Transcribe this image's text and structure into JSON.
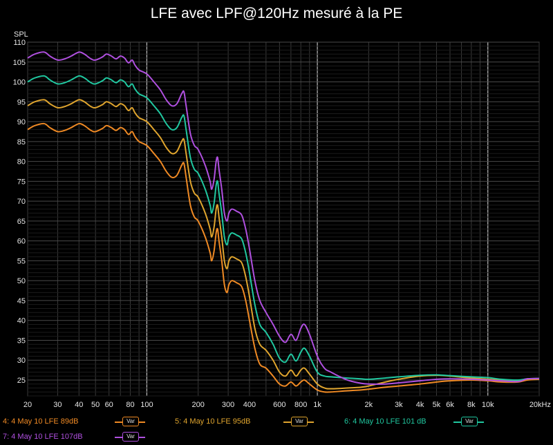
{
  "chart_data": {
    "type": "line",
    "title": "LFE avec LPF@120Hz mesuré à la PE",
    "ylabel": "SPL",
    "xlabel": "",
    "x_scale": "log",
    "xlim": [
      20,
      20000
    ],
    "ylim": [
      21,
      110
    ],
    "grid": true,
    "x_tick_labels": [
      "20",
      "30",
      "40",
      "50",
      "60",
      "80",
      "100",
      "200",
      "300",
      "400",
      "600",
      "800",
      "1k",
      "2k",
      "3k",
      "4k",
      "5k",
      "6k",
      "8k",
      "10k",
      "20kHz"
    ],
    "x_tick_values": [
      20,
      30,
      40,
      50,
      60,
      80,
      100,
      200,
      300,
      400,
      600,
      800,
      1000,
      2000,
      3000,
      4000,
      5000,
      6000,
      8000,
      10000,
      20000
    ],
    "y_ticks": [
      25,
      30,
      35,
      40,
      45,
      50,
      55,
      60,
      65,
      70,
      75,
      80,
      85,
      90,
      95,
      100,
      105,
      110
    ],
    "legend_placement": "bottom",
    "series": [
      {
        "name": "4: 4 May 10 LFE 89dB",
        "color": "#f08a24",
        "legend_button": "Var",
        "points": [
          [
            20,
            88
          ],
          [
            22,
            89
          ],
          [
            25,
            89.5
          ],
          [
            27,
            88.5
          ],
          [
            30,
            87.5
          ],
          [
            33,
            87.8
          ],
          [
            36,
            88.5
          ],
          [
            40,
            89.5
          ],
          [
            43,
            89
          ],
          [
            47,
            87.8
          ],
          [
            50,
            87.5
          ],
          [
            55,
            88.3
          ],
          [
            58,
            89
          ],
          [
            62,
            88.5
          ],
          [
            66,
            87.8
          ],
          [
            70,
            88.5
          ],
          [
            74,
            88
          ],
          [
            78,
            86.8
          ],
          [
            82,
            87.5
          ],
          [
            85,
            86.3
          ],
          [
            90,
            85
          ],
          [
            100,
            84
          ],
          [
            110,
            82
          ],
          [
            120,
            80
          ],
          [
            130,
            77.5
          ],
          [
            140,
            76
          ],
          [
            150,
            76.5
          ],
          [
            160,
            79
          ],
          [
            165,
            79.5
          ],
          [
            170,
            76
          ],
          [
            180,
            69
          ],
          [
            190,
            66
          ],
          [
            200,
            65
          ],
          [
            220,
            61
          ],
          [
            235,
            57
          ],
          [
            240,
            55
          ],
          [
            248,
            57.5
          ],
          [
            255,
            62
          ],
          [
            260,
            63
          ],
          [
            265,
            60
          ],
          [
            275,
            55
          ],
          [
            285,
            49
          ],
          [
            295,
            47
          ],
          [
            303,
            49
          ],
          [
            315,
            50
          ],
          [
            335,
            49.5
          ],
          [
            360,
            48.5
          ],
          [
            380,
            45
          ],
          [
            400,
            40
          ],
          [
            430,
            33
          ],
          [
            460,
            29
          ],
          [
            500,
            28
          ],
          [
            550,
            26
          ],
          [
            600,
            24
          ],
          [
            650,
            23.5
          ],
          [
            700,
            24.5
          ],
          [
            750,
            23.5
          ],
          [
            800,
            24.5
          ],
          [
            840,
            25
          ],
          [
            900,
            24
          ],
          [
            1000,
            22.5
          ],
          [
            1100,
            22
          ],
          [
            1200,
            22
          ],
          [
            1500,
            22.3
          ],
          [
            1800,
            22.5
          ],
          [
            2000,
            22.7
          ],
          [
            2500,
            23.2
          ],
          [
            3000,
            23.5
          ],
          [
            4000,
            24
          ],
          [
            5000,
            24.5
          ],
          [
            6000,
            24.8
          ],
          [
            8000,
            25
          ],
          [
            10000,
            24.8
          ],
          [
            12000,
            24.5
          ],
          [
            15000,
            24.5
          ],
          [
            17000,
            25
          ],
          [
            20000,
            25.2
          ]
        ]
      },
      {
        "name": "5: 4 May 10 LFE 95dB",
        "color": "#e0a52e",
        "legend_button": "Var",
        "points": [
          [
            20,
            94
          ],
          [
            22,
            95
          ],
          [
            25,
            95.5
          ],
          [
            27,
            94.5
          ],
          [
            30,
            93.5
          ],
          [
            33,
            93.8
          ],
          [
            36,
            94.5
          ],
          [
            40,
            95.5
          ],
          [
            43,
            95
          ],
          [
            47,
            93.8
          ],
          [
            50,
            93.5
          ],
          [
            55,
            94.3
          ],
          [
            58,
            95
          ],
          [
            62,
            94.5
          ],
          [
            66,
            93.8
          ],
          [
            70,
            94.5
          ],
          [
            74,
            94
          ],
          [
            78,
            92.8
          ],
          [
            82,
            93.5
          ],
          [
            85,
            92.3
          ],
          [
            90,
            91
          ],
          [
            100,
            90
          ],
          [
            110,
            88
          ],
          [
            120,
            86
          ],
          [
            130,
            83.5
          ],
          [
            140,
            82
          ],
          [
            150,
            82.5
          ],
          [
            160,
            85
          ],
          [
            165,
            85.5
          ],
          [
            170,
            82
          ],
          [
            180,
            75
          ],
          [
            190,
            72
          ],
          [
            200,
            71
          ],
          [
            220,
            67
          ],
          [
            235,
            63
          ],
          [
            240,
            61
          ],
          [
            248,
            63.5
          ],
          [
            255,
            68
          ],
          [
            260,
            69
          ],
          [
            265,
            66
          ],
          [
            275,
            61
          ],
          [
            285,
            55
          ],
          [
            295,
            53
          ],
          [
            303,
            55
          ],
          [
            315,
            56
          ],
          [
            335,
            55.5
          ],
          [
            360,
            54.5
          ],
          [
            380,
            51
          ],
          [
            400,
            46
          ],
          [
            430,
            38
          ],
          [
            460,
            34
          ],
          [
            500,
            32.5
          ],
          [
            550,
            30
          ],
          [
            600,
            27
          ],
          [
            650,
            26
          ],
          [
            700,
            27.5
          ],
          [
            750,
            26
          ],
          [
            800,
            27.5
          ],
          [
            840,
            28
          ],
          [
            900,
            26.5
          ],
          [
            1000,
            24
          ],
          [
            1100,
            23
          ],
          [
            1200,
            22.8
          ],
          [
            1500,
            23
          ],
          [
            1800,
            23.2
          ],
          [
            2000,
            23.5
          ],
          [
            2500,
            24.5
          ],
          [
            3000,
            25.2
          ],
          [
            4000,
            26
          ],
          [
            5000,
            26.2
          ],
          [
            6000,
            26
          ],
          [
            8000,
            25.5
          ],
          [
            10000,
            25.2
          ],
          [
            12000,
            25
          ],
          [
            15000,
            24.8
          ],
          [
            17000,
            25.3
          ],
          [
            20000,
            25.4
          ]
        ]
      },
      {
        "name": "6: 4 May 10 LFE 101 dB",
        "color": "#20c8a0",
        "legend_button": "Var",
        "points": [
          [
            20,
            100
          ],
          [
            22,
            101
          ],
          [
            25,
            101.5
          ],
          [
            27,
            100.5
          ],
          [
            30,
            99.5
          ],
          [
            33,
            99.8
          ],
          [
            36,
            100.5
          ],
          [
            40,
            101.5
          ],
          [
            43,
            101
          ],
          [
            47,
            99.8
          ],
          [
            50,
            99.5
          ],
          [
            55,
            100.3
          ],
          [
            58,
            101
          ],
          [
            62,
            100.5
          ],
          [
            66,
            99.8
          ],
          [
            70,
            100.5
          ],
          [
            74,
            100
          ],
          [
            78,
            98.8
          ],
          [
            82,
            99.5
          ],
          [
            85,
            98.3
          ],
          [
            90,
            97
          ],
          [
            100,
            96
          ],
          [
            110,
            94
          ],
          [
            120,
            92
          ],
          [
            130,
            89.5
          ],
          [
            140,
            88
          ],
          [
            150,
            88.5
          ],
          [
            160,
            91
          ],
          [
            165,
            91.5
          ],
          [
            170,
            88
          ],
          [
            180,
            81
          ],
          [
            190,
            78
          ],
          [
            200,
            77
          ],
          [
            220,
            73
          ],
          [
            235,
            69
          ],
          [
            240,
            67
          ],
          [
            248,
            69.5
          ],
          [
            255,
            74
          ],
          [
            260,
            75
          ],
          [
            265,
            72
          ],
          [
            275,
            67
          ],
          [
            285,
            61
          ],
          [
            295,
            59
          ],
          [
            303,
            61
          ],
          [
            315,
            62
          ],
          [
            335,
            61.5
          ],
          [
            360,
            60.5
          ],
          [
            380,
            57
          ],
          [
            400,
            52
          ],
          [
            430,
            44
          ],
          [
            460,
            39
          ],
          [
            500,
            37
          ],
          [
            550,
            34
          ],
          [
            600,
            30.5
          ],
          [
            650,
            29.5
          ],
          [
            700,
            31.5
          ],
          [
            750,
            29.8
          ],
          [
            800,
            32
          ],
          [
            840,
            33
          ],
          [
            900,
            31
          ],
          [
            1000,
            27
          ],
          [
            1100,
            26
          ],
          [
            1200,
            25.8
          ],
          [
            1500,
            25.5
          ],
          [
            1800,
            25.3
          ],
          [
            2000,
            25.2
          ],
          [
            2500,
            25.5
          ],
          [
            3000,
            25.8
          ],
          [
            4000,
            26.2
          ],
          [
            5000,
            26.3
          ],
          [
            6000,
            26.1
          ],
          [
            8000,
            25.8
          ],
          [
            10000,
            25.6
          ],
          [
            12000,
            25.2
          ],
          [
            15000,
            25
          ],
          [
            17000,
            25.3
          ],
          [
            20000,
            25.4
          ]
        ]
      },
      {
        "name": "7: 4 May 10 LFE 107dB",
        "color": "#b050e0",
        "legend_button": "Var",
        "points": [
          [
            20,
            106
          ],
          [
            22,
            107
          ],
          [
            25,
            107.5
          ],
          [
            27,
            106.5
          ],
          [
            30,
            105.5
          ],
          [
            33,
            105.8
          ],
          [
            36,
            106.5
          ],
          [
            40,
            107.5
          ],
          [
            43,
            107
          ],
          [
            47,
            105.8
          ],
          [
            50,
            105.5
          ],
          [
            55,
            106.3
          ],
          [
            58,
            107
          ],
          [
            62,
            106.5
          ],
          [
            66,
            105.8
          ],
          [
            70,
            106.5
          ],
          [
            74,
            106
          ],
          [
            78,
            104.8
          ],
          [
            82,
            105.5
          ],
          [
            85,
            104.3
          ],
          [
            90,
            103
          ],
          [
            100,
            102
          ],
          [
            110,
            100
          ],
          [
            120,
            98
          ],
          [
            130,
            95.5
          ],
          [
            140,
            94
          ],
          [
            150,
            94.5
          ],
          [
            160,
            97
          ],
          [
            165,
            97.5
          ],
          [
            170,
            94
          ],
          [
            180,
            87
          ],
          [
            190,
            84
          ],
          [
            200,
            83
          ],
          [
            220,
            79
          ],
          [
            235,
            75
          ],
          [
            240,
            73
          ],
          [
            248,
            75.5
          ],
          [
            255,
            80
          ],
          [
            260,
            81
          ],
          [
            265,
            78
          ],
          [
            275,
            73
          ],
          [
            285,
            67
          ],
          [
            295,
            65
          ],
          [
            303,
            67
          ],
          [
            315,
            68
          ],
          [
            335,
            67.5
          ],
          [
            360,
            66.5
          ],
          [
            380,
            63
          ],
          [
            400,
            58
          ],
          [
            430,
            50
          ],
          [
            460,
            45
          ],
          [
            500,
            42
          ],
          [
            550,
            39
          ],
          [
            600,
            36
          ],
          [
            650,
            34.5
          ],
          [
            700,
            36.5
          ],
          [
            750,
            35
          ],
          [
            800,
            38
          ],
          [
            840,
            39
          ],
          [
            900,
            36.5
          ],
          [
            1000,
            31
          ],
          [
            1100,
            28
          ],
          [
            1200,
            27
          ],
          [
            1500,
            25
          ],
          [
            1800,
            24.2
          ],
          [
            2000,
            24
          ],
          [
            2500,
            24
          ],
          [
            3000,
            24.3
          ],
          [
            4000,
            24.8
          ],
          [
            5000,
            25.2
          ],
          [
            6000,
            25.3
          ],
          [
            8000,
            25.2
          ],
          [
            10000,
            25
          ],
          [
            12000,
            24.8
          ],
          [
            15000,
            24.6
          ],
          [
            17000,
            25.3
          ],
          [
            20000,
            25.4
          ]
        ]
      }
    ]
  }
}
